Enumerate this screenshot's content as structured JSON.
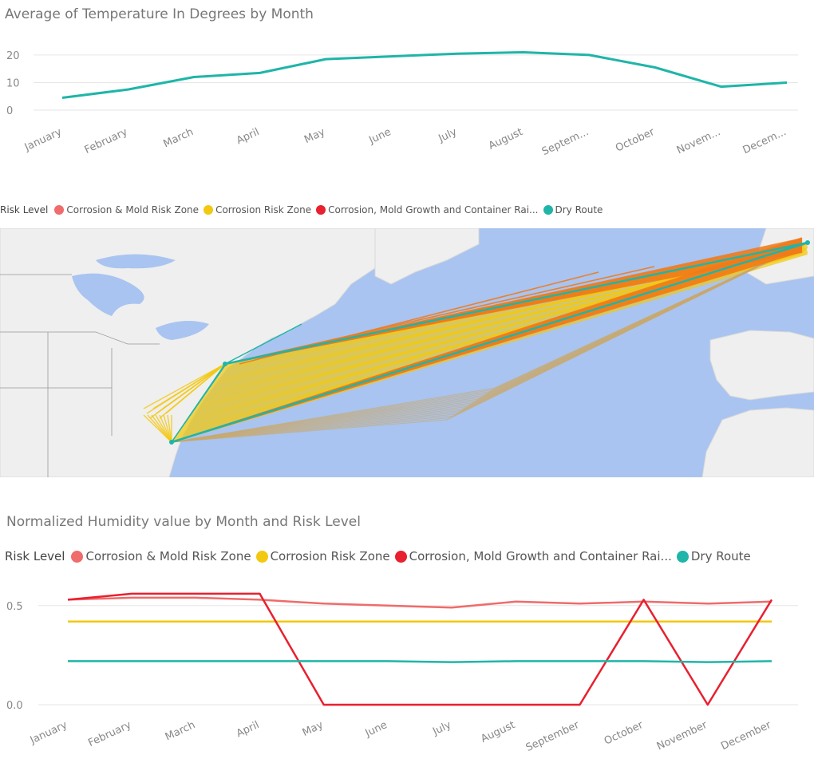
{
  "chart_data": [
    {
      "type": "line",
      "title": "Average of Temperature In Degrees by Month",
      "categories": [
        "January",
        "February",
        "March",
        "April",
        "May",
        "June",
        "July",
        "August",
        "Septem...",
        "October",
        "Novem...",
        "Decem..."
      ],
      "series": [
        {
          "color": "#1fb5a8",
          "values": [
            4.5,
            7.5,
            12,
            13.5,
            18.5,
            19.5,
            20.5,
            21,
            20,
            15.5,
            8.5,
            10
          ]
        }
      ],
      "yticks": [
        0,
        10,
        20
      ],
      "ylim": [
        0,
        22
      ]
    },
    {
      "type": "line",
      "title": "Normalized Humidity value by Month and Risk Level",
      "categories": [
        "January",
        "February",
        "March",
        "April",
        "May",
        "June",
        "July",
        "August",
        "September",
        "October",
        "November",
        "December"
      ],
      "legend_title": "Risk Level",
      "series": [
        {
          "name": "Corrosion & Mold Risk Zone",
          "color": "#f06b6b",
          "values": [
            0.53,
            0.54,
            0.54,
            0.53,
            0.51,
            0.5,
            0.49,
            0.52,
            0.51,
            0.52,
            0.51,
            0.52
          ]
        },
        {
          "name": "Corrosion Risk Zone",
          "color": "#f2c811",
          "values": [
            0.42,
            0.42,
            0.42,
            0.42,
            0.42,
            0.42,
            0.42,
            0.42,
            0.42,
            0.42,
            0.42,
            0.42
          ]
        },
        {
          "name": "Corrosion, Mold Growth and Container Rai...",
          "color": "#e8202f",
          "values": [
            0.53,
            0.56,
            0.56,
            0.56,
            0.0,
            0.0,
            0.0,
            0.0,
            0.0,
            0.53,
            0.0,
            0.53
          ]
        },
        {
          "name": "Dry Route",
          "color": "#1fb5a8",
          "values": [
            0.22,
            0.22,
            0.22,
            0.22,
            0.22,
            0.22,
            0.215,
            0.22,
            0.22,
            0.22,
            0.215,
            0.22
          ]
        }
      ],
      "yticks": [
        0.0,
        0.5
      ],
      "ytick_labels": [
        "0.0",
        "0.5"
      ],
      "ylim": [
        0,
        0.62
      ]
    }
  ],
  "map": {
    "legend_title": "Risk Level",
    "legend": [
      {
        "name": "Corrosion & Mold Risk Zone",
        "color": "#f06b6b"
      },
      {
        "name": "Corrosion Risk Zone",
        "color": "#f2c811"
      },
      {
        "name": "Corrosion, Mold Growth and Container Rai...",
        "color": "#e8202f"
      },
      {
        "name": "Dry Route",
        "color": "#1fb5a8"
      }
    ],
    "colors": {
      "ocean": "#a9c4f0",
      "land": "#efefef",
      "route_orange": "#f07a1a",
      "route_yellow": "#f2c811",
      "route_teal": "#1fb5a8"
    }
  }
}
